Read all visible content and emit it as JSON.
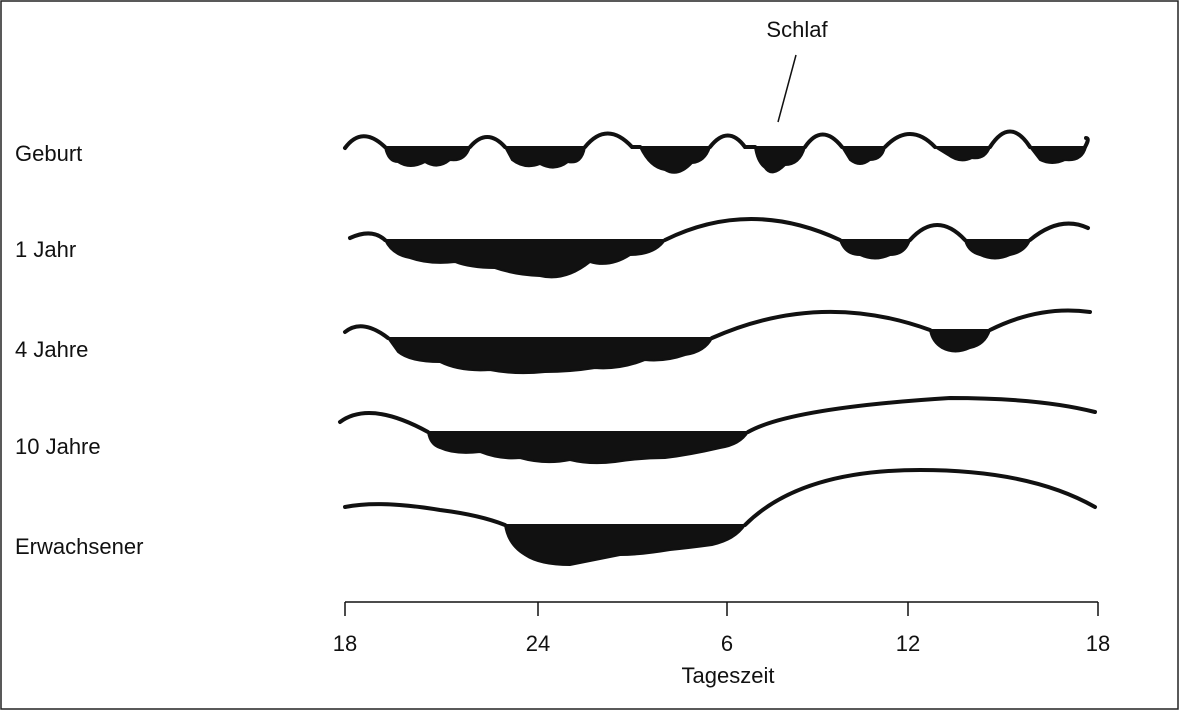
{
  "annotation": "Schlaf",
  "rows": [
    {
      "label": "Geburt"
    },
    {
      "label": "1 Jahr"
    },
    {
      "label": "4 Jahre"
    },
    {
      "label": "10 Jahre"
    },
    {
      "label": "Erwachsener"
    }
  ],
  "axis": {
    "ticks": [
      "18",
      "24",
      "6",
      "12",
      "18"
    ],
    "label": "Tageszeit"
  }
}
